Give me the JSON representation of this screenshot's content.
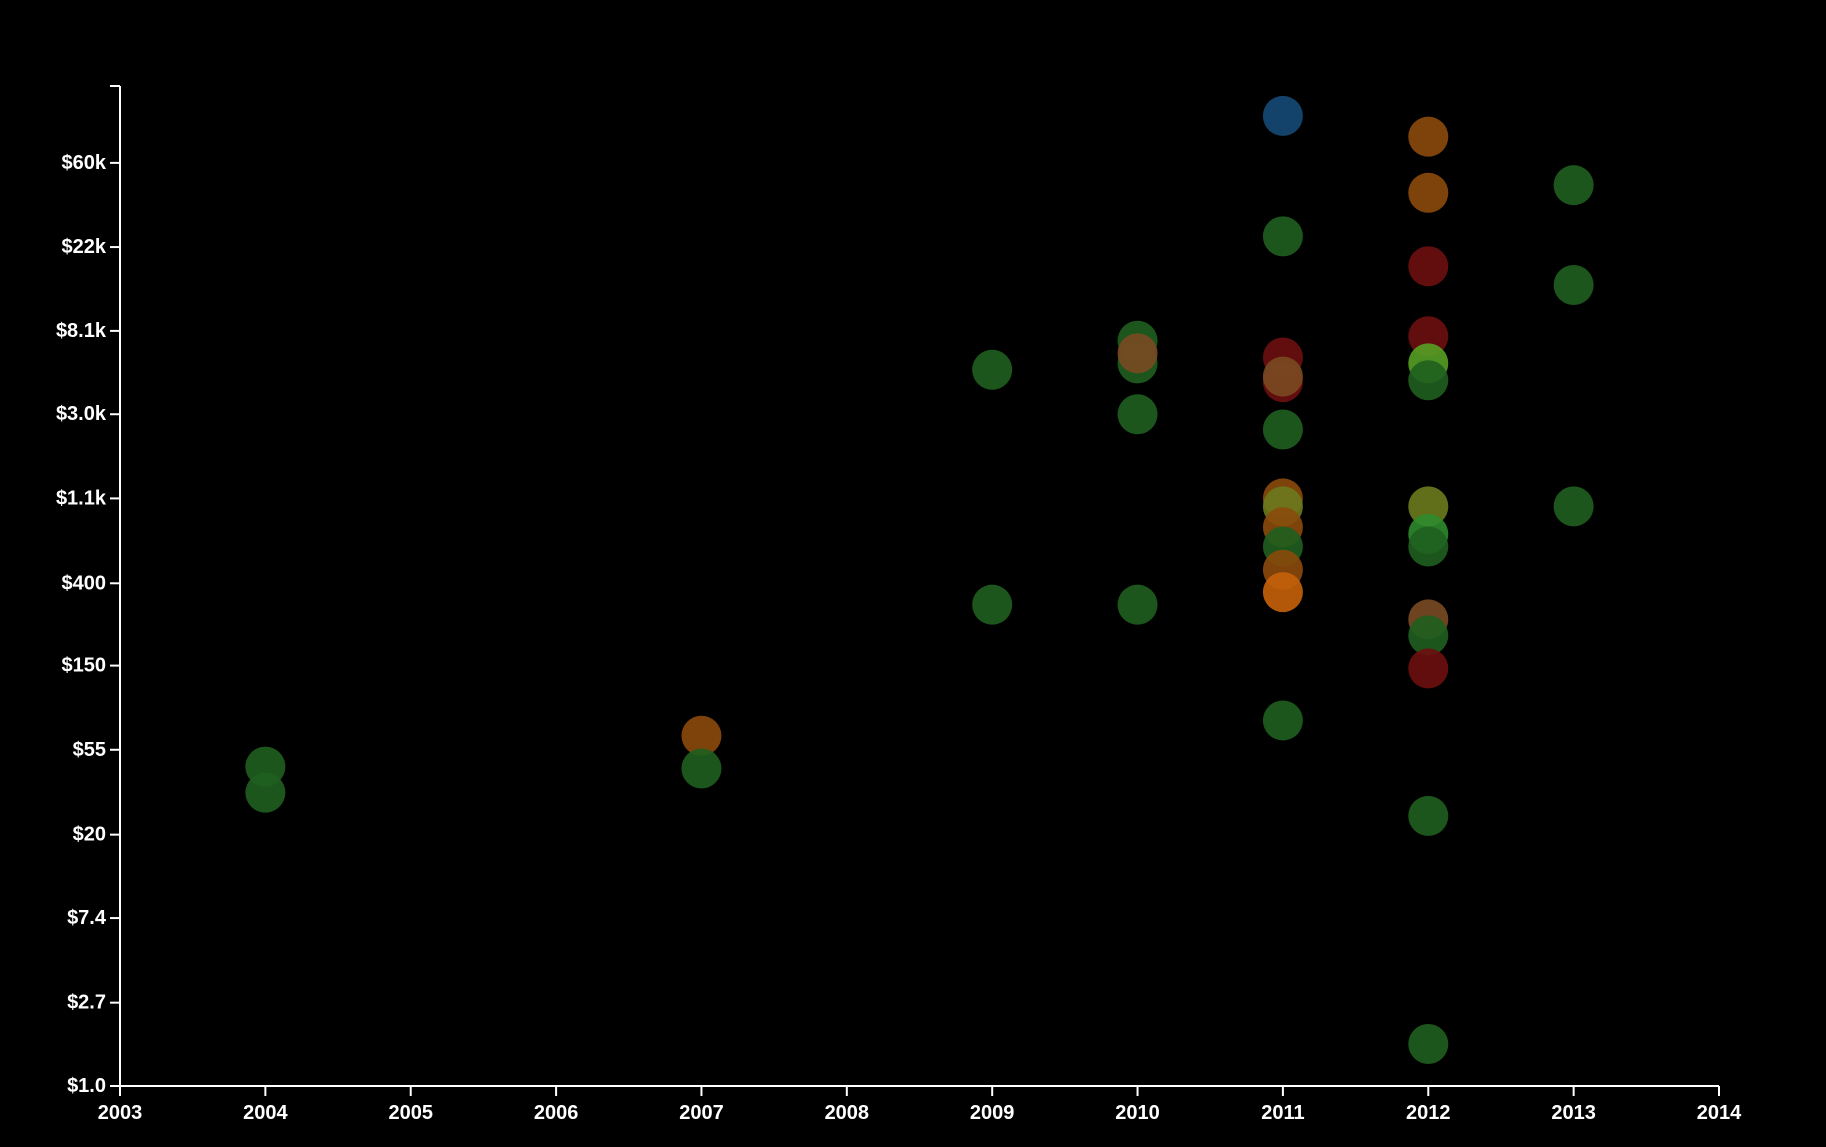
{
  "chart_data": {
    "type": "scatter",
    "title": "",
    "xlabel": "",
    "ylabel": "",
    "y_scale": "log",
    "x_range": [
      2003,
      2014
    ],
    "y_range": [
      1.0,
      150000
    ],
    "grid": false,
    "x_ticks": [
      {
        "value": 2003,
        "label": "2003"
      },
      {
        "value": 2004,
        "label": "2004"
      },
      {
        "value": 2005,
        "label": "2005"
      },
      {
        "value": 2006,
        "label": "2006"
      },
      {
        "value": 2007,
        "label": "2007"
      },
      {
        "value": 2008,
        "label": "2008"
      },
      {
        "value": 2009,
        "label": "2009"
      },
      {
        "value": 2010,
        "label": "2010"
      },
      {
        "value": 2011,
        "label": "2011"
      },
      {
        "value": 2012,
        "label": "2012"
      },
      {
        "value": 2013,
        "label": "2013"
      },
      {
        "value": 2014,
        "label": "2014"
      }
    ],
    "y_ticks": [
      {
        "value": 1.0,
        "label": "$1.0"
      },
      {
        "value": 2.7,
        "label": "$2.7"
      },
      {
        "value": 7.4,
        "label": "$7.4"
      },
      {
        "value": 20,
        "label": "$20"
      },
      {
        "value": 55,
        "label": "$55"
      },
      {
        "value": 150,
        "label": "$150"
      },
      {
        "value": 400,
        "label": "$400"
      },
      {
        "value": 1100,
        "label": "$1.1k"
      },
      {
        "value": 3000,
        "label": "$3.0k"
      },
      {
        "value": 8100,
        "label": "$8.1k"
      },
      {
        "value": 22000,
        "label": "$22k"
      },
      {
        "value": 60000,
        "label": "$60k"
      }
    ],
    "colors": {
      "green": "#1f5f1f",
      "bright_green": "#2e8b2e",
      "orange": "#8b4a0c",
      "bright_orange": "#c7620a",
      "red": "#6e1010",
      "blue": "#154a75",
      "olive": "#6b7a1d",
      "lime": "#55a025",
      "brown": "#7a4a22"
    },
    "points": [
      {
        "x": 2004,
        "y": 45,
        "color": "green"
      },
      {
        "x": 2004,
        "y": 33,
        "color": "green"
      },
      {
        "x": 2007,
        "y": 65,
        "color": "orange"
      },
      {
        "x": 2007,
        "y": 44,
        "color": "green"
      },
      {
        "x": 2009,
        "y": 5100,
        "color": "green"
      },
      {
        "x": 2009,
        "y": 310,
        "color": "green"
      },
      {
        "x": 2010,
        "y": 7200,
        "color": "green"
      },
      {
        "x": 2010,
        "y": 5500,
        "color": "green"
      },
      {
        "x": 2010,
        "y": 6200,
        "color": "brown"
      },
      {
        "x": 2010,
        "y": 3000,
        "color": "green"
      },
      {
        "x": 2010,
        "y": 310,
        "color": "green"
      },
      {
        "x": 2011,
        "y": 105000,
        "color": "blue"
      },
      {
        "x": 2011,
        "y": 25000,
        "color": "green"
      },
      {
        "x": 2011,
        "y": 5900,
        "color": "red"
      },
      {
        "x": 2011,
        "y": 4400,
        "color": "red"
      },
      {
        "x": 2011,
        "y": 4700,
        "color": "brown"
      },
      {
        "x": 2011,
        "y": 2500,
        "color": "green"
      },
      {
        "x": 2011,
        "y": 1100,
        "color": "orange"
      },
      {
        "x": 2011,
        "y": 1000,
        "color": "olive"
      },
      {
        "x": 2011,
        "y": 780,
        "color": "orange"
      },
      {
        "x": 2011,
        "y": 620,
        "color": "green"
      },
      {
        "x": 2011,
        "y": 470,
        "color": "orange"
      },
      {
        "x": 2011,
        "y": 360,
        "color": "bright_orange"
      },
      {
        "x": 2011,
        "y": 78,
        "color": "green"
      },
      {
        "x": 2012,
        "y": 82000,
        "color": "orange"
      },
      {
        "x": 2012,
        "y": 42000,
        "color": "orange"
      },
      {
        "x": 2012,
        "y": 17500,
        "color": "red"
      },
      {
        "x": 2012,
        "y": 7600,
        "color": "red"
      },
      {
        "x": 2012,
        "y": 5500,
        "color": "lime"
      },
      {
        "x": 2012,
        "y": 4500,
        "color": "green"
      },
      {
        "x": 2012,
        "y": 1000,
        "color": "olive"
      },
      {
        "x": 2012,
        "y": 720,
        "color": "bright_green"
      },
      {
        "x": 2012,
        "y": 620,
        "color": "green"
      },
      {
        "x": 2012,
        "y": 260,
        "color": "brown"
      },
      {
        "x": 2012,
        "y": 215,
        "color": "green"
      },
      {
        "x": 2012,
        "y": 145,
        "color": "red"
      },
      {
        "x": 2012,
        "y": 25,
        "color": "green"
      },
      {
        "x": 2012,
        "y": 1.65,
        "color": "green"
      },
      {
        "x": 2013,
        "y": 46000,
        "color": "green"
      },
      {
        "x": 2013,
        "y": 14000,
        "color": "green"
      },
      {
        "x": 2013,
        "y": 1000,
        "color": "green"
      }
    ]
  }
}
